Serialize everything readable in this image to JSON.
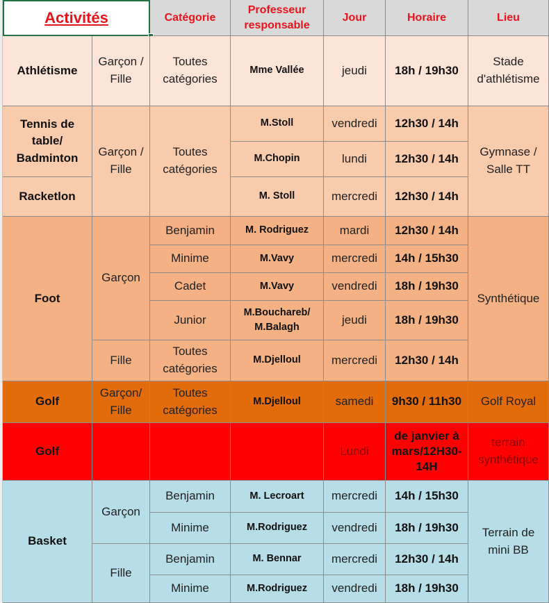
{
  "colors": {
    "header": "#d9d9d9",
    "red_text": "#e8141c",
    "athletisme": "#fce4d6",
    "tennis": "#f8cbad",
    "foot": "#f4b183",
    "golf_orange": "#e26b0a",
    "golf_red": "#ff0000",
    "basket": "#b7dde8"
  },
  "headers": {
    "activites": "Activités",
    "categorie": "Catégorie",
    "professeur": "Professeur responsable",
    "jour": "Jour",
    "horaire": "Horaire",
    "lieu": "Lieu"
  },
  "athletisme": {
    "activite": "Athlétisme",
    "genre": "Garçon / Fille",
    "categorie": "Toutes catégories",
    "prof": "Mme Vallée",
    "jour": "jeudi",
    "horaire": "18h / 19h30",
    "lieu": "Stade d'athlétisme"
  },
  "raquettes": {
    "activite_1": "Tennis de table/ Badminton",
    "activite_2": "Racketlon",
    "genre": "Garçon / Fille",
    "categorie": "Toutes catégories",
    "lieu": "Gymnase / Salle TT",
    "rows": [
      {
        "prof": "M.Stoll",
        "jour": "vendredi",
        "horaire": "12h30 / 14h"
      },
      {
        "prof": "M.Chopin",
        "jour": "lundi",
        "horaire": "12h30 / 14h"
      },
      {
        "prof": "M. Stoll",
        "jour": "mercredi",
        "horaire": "12h30 / 14h"
      }
    ]
  },
  "foot": {
    "activite": "Foot",
    "genre_garcon": "Garçon",
    "genre_fille": "Fille",
    "lieu": "Synthétique",
    "rows": [
      {
        "categorie": "Benjamin",
        "prof": "M. Rodriguez",
        "jour": "mardi",
        "horaire": "12h30 / 14h"
      },
      {
        "categorie": "Minime",
        "prof": "M.Vavy",
        "jour": "mercredi",
        "horaire": "14h / 15h30"
      },
      {
        "categorie": "Cadet",
        "prof": "M.Vavy",
        "jour": "vendredi",
        "horaire": "18h / 19h30"
      },
      {
        "categorie": "Junior",
        "prof": "M.Bouchareb/ M.Balagh",
        "jour": "jeudi",
        "horaire": "18h / 19h30"
      },
      {
        "categorie": "Toutes catégories",
        "prof": "M.Djelloul",
        "jour": "mercredi",
        "horaire": "12h30 / 14h"
      }
    ]
  },
  "golf": {
    "activite": "Golf",
    "genre": "Garçon/ Fille",
    "categorie": "Toutes catégories",
    "prof": "M.Djelloul",
    "jour": "samedi",
    "horaire": "9h30 / 11h30",
    "lieu": "Golf Royal"
  },
  "golf2": {
    "activite": "Golf",
    "jour": "Lundi",
    "horaire": "de janvier à mars/12H30-14H",
    "lieu": "terrain synthétique"
  },
  "basket": {
    "activite": "Basket",
    "genre_garcon": "Garçon",
    "genre_fille": "Fille",
    "lieu": "Terrain de mini BB",
    "rows": [
      {
        "categorie": "Benjamin",
        "prof": "M. Lecroart",
        "jour": "mercredi",
        "horaire": "14h / 15h30"
      },
      {
        "categorie": "Minime",
        "prof": "M.Rodriguez",
        "jour": "vendredi",
        "horaire": "18h / 19h30"
      },
      {
        "categorie": "Benjamin",
        "prof": "M. Bennar",
        "jour": "mercredi",
        "horaire": "12h30 / 14h"
      },
      {
        "categorie": "Minime",
        "prof": "M.Rodriguez",
        "jour": "vendredi",
        "horaire": "18h / 19h30"
      }
    ]
  }
}
